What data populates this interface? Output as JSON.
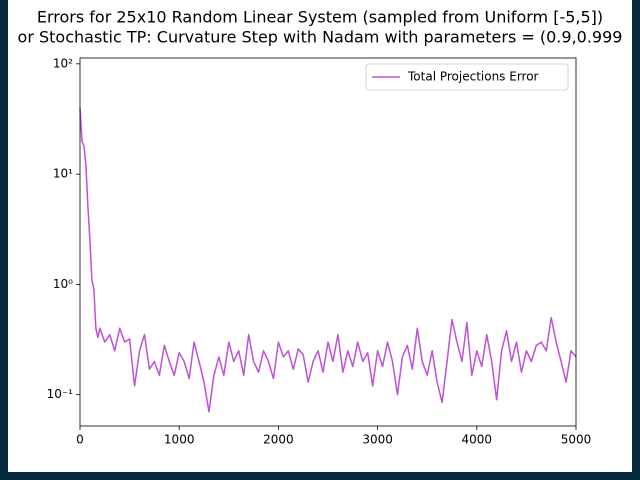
{
  "chart_data": {
    "type": "line",
    "title": "Errors for 25x10 Random Linear System (sampled from Uniform [-5,5])",
    "subtitle": "or Stochastic TP: Curvature Step with Nadam with parameters = (0.9,0.999",
    "x": [
      0,
      20,
      40,
      60,
      80,
      100,
      120,
      140,
      160,
      180,
      200,
      250,
      300,
      350,
      400,
      450,
      500,
      550,
      600,
      650,
      700,
      750,
      800,
      850,
      900,
      950,
      1000,
      1050,
      1100,
      1150,
      1200,
      1250,
      1300,
      1350,
      1400,
      1450,
      1500,
      1550,
      1600,
      1650,
      1700,
      1750,
      1800,
      1850,
      1900,
      1950,
      2000,
      2050,
      2100,
      2150,
      2200,
      2250,
      2300,
      2350,
      2400,
      2450,
      2500,
      2550,
      2600,
      2650,
      2700,
      2750,
      2800,
      2850,
      2900,
      2950,
      3000,
      3050,
      3100,
      3150,
      3200,
      3250,
      3300,
      3350,
      3400,
      3450,
      3500,
      3550,
      3600,
      3650,
      3700,
      3750,
      3800,
      3850,
      3900,
      3950,
      4000,
      4050,
      4100,
      4150,
      4200,
      4250,
      4300,
      4350,
      4400,
      4450,
      4500,
      4550,
      4600,
      4650,
      4700,
      4750,
      4800,
      4850,
      4900,
      4950,
      5000
    ],
    "series": [
      {
        "name": "Total Projections Error",
        "color": "#bf50d8",
        "values": [
          40,
          20,
          18,
          12,
          5,
          2.5,
          1.1,
          0.9,
          0.4,
          0.33,
          0.4,
          0.3,
          0.35,
          0.25,
          0.4,
          0.3,
          0.32,
          0.12,
          0.25,
          0.35,
          0.17,
          0.2,
          0.15,
          0.28,
          0.2,
          0.15,
          0.24,
          0.2,
          0.14,
          0.3,
          0.2,
          0.13,
          0.07,
          0.15,
          0.22,
          0.15,
          0.3,
          0.2,
          0.25,
          0.15,
          0.35,
          0.2,
          0.16,
          0.25,
          0.2,
          0.14,
          0.3,
          0.22,
          0.25,
          0.17,
          0.26,
          0.23,
          0.13,
          0.2,
          0.25,
          0.16,
          0.3,
          0.2,
          0.35,
          0.16,
          0.25,
          0.18,
          0.3,
          0.2,
          0.24,
          0.12,
          0.25,
          0.18,
          0.3,
          0.2,
          0.1,
          0.22,
          0.28,
          0.17,
          0.4,
          0.2,
          0.15,
          0.25,
          0.13,
          0.085,
          0.2,
          0.48,
          0.3,
          0.2,
          0.45,
          0.15,
          0.25,
          0.18,
          0.35,
          0.2,
          0.09,
          0.25,
          0.38,
          0.2,
          0.3,
          0.16,
          0.25,
          0.2,
          0.28,
          0.3,
          0.25,
          0.5,
          0.3,
          0.2,
          0.13,
          0.25,
          0.22
        ]
      }
    ],
    "xlim": [
      0,
      5000
    ],
    "xticks": [
      0,
      1000,
      2000,
      3000,
      4000,
      5000
    ],
    "ylim": [
      0.052,
      113
    ],
    "yticks": [
      {
        "value": 0.1,
        "label": "10⁻¹"
      },
      {
        "value": 1,
        "label": "10⁰"
      },
      {
        "value": 10,
        "label": "10¹"
      },
      {
        "value": 100,
        "label": "10²"
      }
    ],
    "log_y": true,
    "legend": "upper right"
  }
}
